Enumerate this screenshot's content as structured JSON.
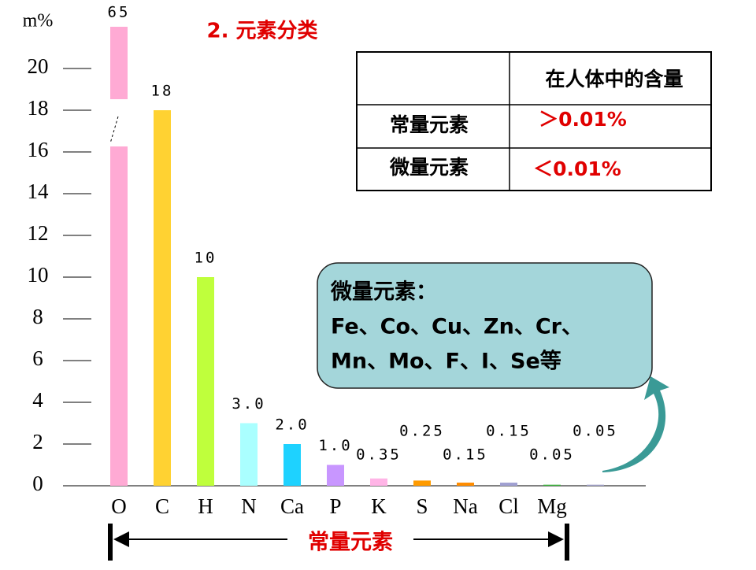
{
  "title": "2. 元素分类",
  "table": {
    "header": "在人体中的含量",
    "rows": [
      [
        "常量元素",
        "＞0.01%"
      ],
      [
        "微量元素",
        "＜0.01%"
      ]
    ]
  },
  "callout": [
    "微量元素：",
    "Fe、Co、Cu、Zn、Cr、",
    "Mn、Mo、F、I、Se等"
  ],
  "bracket_label": "常量元素",
  "chart_data": {
    "type": "bar",
    "y_label": "m%",
    "categories": [
      "O",
      "C",
      "H",
      "N",
      "Ca",
      "P",
      "K",
      "S",
      "Na",
      "Cl",
      "Mg",
      null
    ],
    "values": [
      65,
      18,
      10,
      3.0,
      2.0,
      1.0,
      0.35,
      0.25,
      0.15,
      0.15,
      0.05,
      0.05
    ],
    "value_labels": [
      "65",
      "18",
      "10",
      "3.0",
      "2.0",
      "1.0",
      "0.35",
      "0.25",
      "0.15",
      "0.15",
      "0.05",
      "0.05"
    ],
    "colors": [
      "#ffaad4",
      "#ffd232",
      "#bfff3c",
      "#aaffff",
      "#1ed2ff",
      "#c896ff",
      "#ffb4e6",
      "#ff9b00",
      "#ff8c00",
      "#a0a0d2",
      "#3cb43c",
      "#a0a0c8"
    ],
    "ylim": [
      0,
      22
    ],
    "yticks": [
      0,
      2,
      4,
      6,
      8,
      10,
      12,
      14,
      16,
      18,
      20
    ]
  }
}
